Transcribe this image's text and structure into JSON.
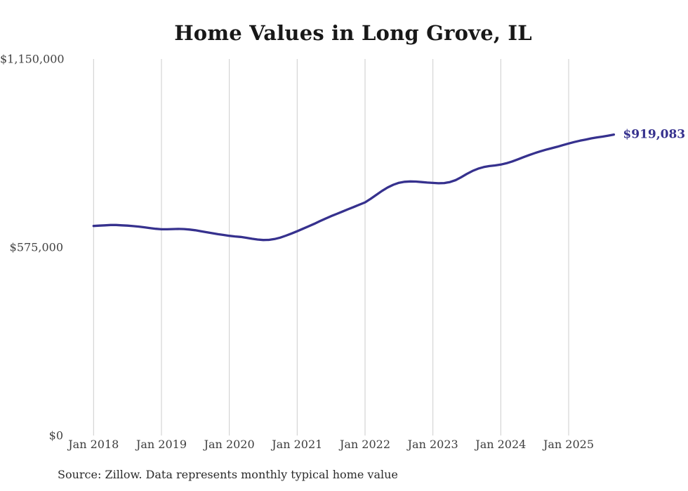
{
  "header": {
    "title": "Home Values in Long Grove, IL"
  },
  "footer": {
    "source_note": "Source: Zillow. Data represents monthly typical home value"
  },
  "colors": {
    "line": "#36318e",
    "grid": "#cccccc",
    "title_text": "#181818",
    "axis_text": "#3d3d3d",
    "annotation": "#36318e",
    "background": "#ffffff"
  },
  "chart_data": {
    "type": "line",
    "title": "Home Values in Long Grove, IL",
    "xlabel": "",
    "ylabel": "",
    "frequency": "monthly",
    "x_start_label": "Jan 2018",
    "x_tick_labels": [
      "Jan 2018",
      "Jan 2019",
      "Jan 2020",
      "Jan 2021",
      "Jan 2022",
      "Jan 2023",
      "Jan 2024",
      "Jan 2025"
    ],
    "x_tick_month_indices": [
      0,
      12,
      24,
      36,
      48,
      60,
      72,
      84
    ],
    "y_tick_labels": [
      "$0",
      "$575,000",
      "$1,150,000"
    ],
    "y_tick_values": [
      0,
      575000,
      1150000
    ],
    "ylim": [
      0,
      1150000
    ],
    "grid": "vertical-only",
    "legend": "none",
    "values": [
      640000,
      641000,
      642000,
      643000,
      643000,
      642000,
      641000,
      639500,
      638000,
      636000,
      633500,
      631500,
      630000,
      630000,
      630500,
      631000,
      630500,
      629000,
      627000,
      624000,
      621000,
      618000,
      615000,
      612500,
      610000,
      608000,
      606500,
      604000,
      601000,
      598500,
      597000,
      597500,
      600000,
      604500,
      610500,
      617000,
      624000,
      631500,
      639000,
      646500,
      654500,
      662500,
      670000,
      677000,
      684000,
      691000,
      698000,
      705000,
      712000,
      723000,
      735000,
      747000,
      757500,
      766000,
      772000,
      775000,
      776000,
      775500,
      774000,
      772500,
      771500,
      770500,
      771000,
      774000,
      780000,
      789000,
      799000,
      808000,
      815000,
      820000,
      823000,
      825000,
      827500,
      831500,
      837000,
      843500,
      850000,
      856500,
      862500,
      868000,
      873000,
      877500,
      882000,
      887000,
      892000,
      896500,
      900500,
      904000,
      907500,
      910500,
      913000,
      916000,
      919083
    ],
    "latest_value": 919083,
    "annotation": {
      "text": "$919,083",
      "at": "last-point"
    }
  }
}
